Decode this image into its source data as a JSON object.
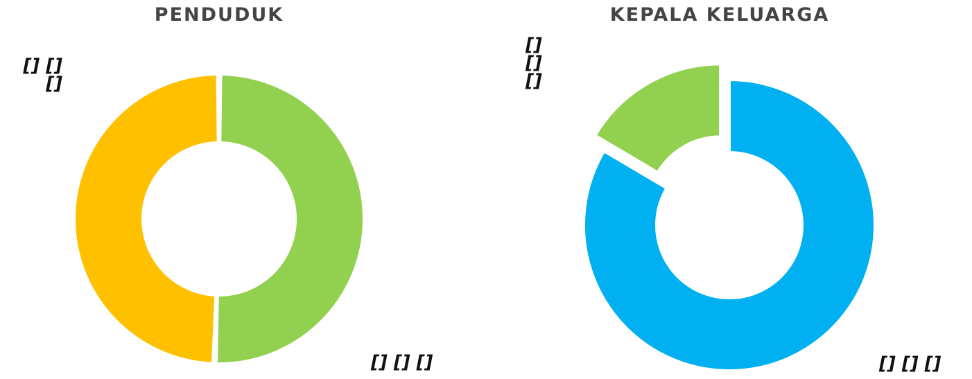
{
  "chart_data": [
    {
      "type": "pie",
      "title": "Penduduk",
      "donut": true,
      "slices": [
        {
          "label": "",
          "value": 50.5,
          "color": "#92D050",
          "data_label": "[] [] []"
        },
        {
          "label": "",
          "value": 49.5,
          "color": "#FFC000",
          "data_label": "[] [] []"
        }
      ]
    },
    {
      "type": "pie",
      "title": "Kepala Keluarga",
      "donut": true,
      "slices": [
        {
          "label": "",
          "value": 83.5,
          "color": "#00B0F0",
          "data_label": "[] [] []"
        },
        {
          "label": "",
          "value": 16.5,
          "color": "#92D050",
          "data_label": "[] [] []"
        }
      ]
    }
  ]
}
